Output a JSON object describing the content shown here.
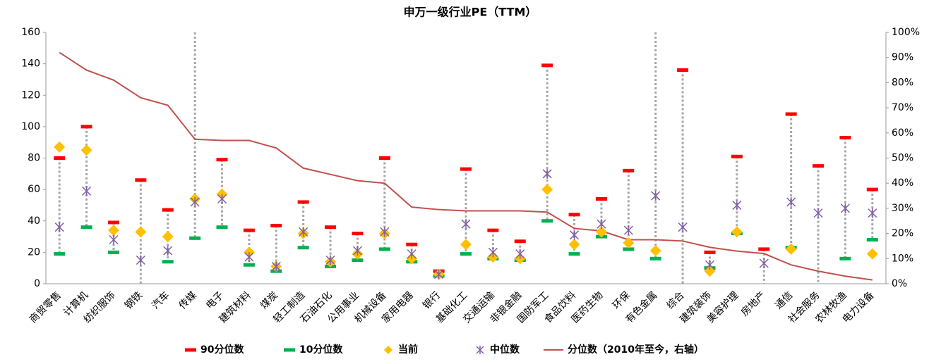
{
  "chart_data": {
    "type": "range-dot",
    "title": "申万一级行业PE（TTM）",
    "categories": [
      "商贸零售",
      "计算机",
      "纺织服饰",
      "钢铁",
      "汽车",
      "传媒",
      "电子",
      "建筑材料",
      "煤炭",
      "轻工制造",
      "石油石化",
      "公用事业",
      "机械设备",
      "家用电器",
      "银行",
      "基础化工",
      "交通运输",
      "非银金融",
      "国防军工",
      "食品饮料",
      "医药生物",
      "环保",
      "有色金属",
      "综合",
      "建筑装饰",
      "美容护理",
      "房地产",
      "通信",
      "社会服务",
      "农林牧渔",
      "电力设备"
    ],
    "series": [
      {
        "name": "90分位数",
        "color": "#ff0000",
        "marker": "dash",
        "values": [
          80,
          100,
          39,
          66,
          47,
          null,
          79,
          34,
          37,
          52,
          36,
          32,
          80,
          25,
          8,
          73,
          34,
          27,
          139,
          44,
          54,
          72,
          null,
          136,
          20,
          81,
          22,
          108,
          75,
          93,
          60
        ]
      },
      {
        "name": "10分位数",
        "color": "#00b050",
        "marker": "dash",
        "values": [
          19,
          36,
          20,
          null,
          14,
          29,
          36,
          12,
          8,
          23,
          11,
          15,
          22,
          14,
          5,
          19,
          16,
          15,
          40,
          19,
          30,
          22,
          16,
          null,
          10,
          32,
          null,
          23,
          null,
          16,
          28
        ]
      },
      {
        "name": "当前",
        "color": "#ffc000",
        "marker": "diamond",
        "values": [
          87,
          85,
          34,
          33,
          30,
          54,
          57,
          20,
          11,
          32,
          14,
          19,
          32,
          16,
          6,
          25,
          17,
          16,
          60,
          25,
          33,
          26,
          21,
          null,
          8,
          33,
          null,
          22,
          null,
          null,
          19
        ]
      },
      {
        "name": "中位数",
        "color": "#7f5fa8",
        "marker": "x",
        "values": [
          36,
          59,
          28,
          15,
          21,
          52,
          54,
          17,
          11,
          33,
          15,
          21,
          33,
          19,
          6,
          38,
          20,
          19,
          70,
          31,
          38,
          34,
          56,
          36,
          12,
          50,
          13,
          52,
          45,
          48,
          45
        ]
      },
      {
        "name": "分位数（2010年至今，右轴）",
        "color": "#c0504d",
        "marker": "line",
        "axis": "y2",
        "values": [
          92,
          85,
          81,
          74,
          71,
          57.5,
          57,
          57,
          54,
          46,
          43.5,
          41,
          40,
          30.5,
          29.5,
          29,
          29,
          29,
          28.5,
          22,
          21,
          17.5,
          17.5,
          17,
          14.5,
          13,
          12,
          7.5,
          5,
          3,
          1.5
        ]
      }
    ],
    "ylim": [
      0,
      160
    ],
    "yticks": [
      0,
      20,
      40,
      60,
      80,
      100,
      120,
      140,
      160
    ],
    "y2lim": [
      0,
      100
    ],
    "y2ticks": [
      {
        "value": 0,
        "label": "0%"
      },
      {
        "value": 10,
        "label": "10%"
      },
      {
        "value": 20,
        "label": "20%"
      },
      {
        "value": 30,
        "label": "30%"
      },
      {
        "value": 40,
        "label": "40%"
      },
      {
        "value": 50,
        "label": "50%"
      },
      {
        "value": 60,
        "label": "60%"
      },
      {
        "value": 70,
        "label": "70%"
      },
      {
        "value": 80,
        "label": "80%"
      },
      {
        "value": 90,
        "label": "90%"
      },
      {
        "value": 100,
        "label": "100%"
      }
    ],
    "legend": "bottom"
  }
}
